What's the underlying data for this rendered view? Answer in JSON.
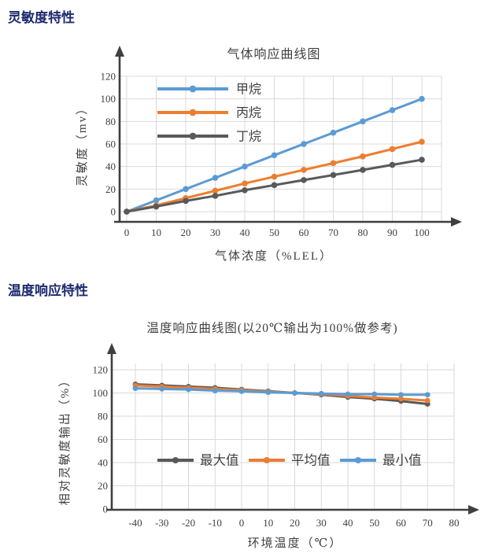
{
  "page": {
    "section1_title": "灵敏度特性",
    "section2_title": "温度响应特性"
  },
  "colors": {
    "heading": "#1c2a6e",
    "series_blue": "#5B9BD5",
    "series_orange": "#ED7D31",
    "series_gray": "#595959",
    "grid": "#D9D9D9",
    "axis": "#3f3f3f",
    "text": "#404040"
  },
  "chart_data": [
    {
      "type": "line",
      "title": "气体响应曲线图",
      "xlabel": "气体浓度（%LEL）",
      "ylabel": "灵敏度（mv）",
      "x": [
        0,
        10,
        20,
        30,
        40,
        50,
        60,
        70,
        80,
        90,
        100
      ],
      "x_tick_labels": [
        "0",
        "10",
        "20",
        "30",
        "40",
        "50",
        "60",
        "70",
        "80",
        "90",
        "100"
      ],
      "x_tick_values": [
        0,
        10,
        20,
        30,
        40,
        50,
        60,
        70,
        80,
        90,
        100
      ],
      "y_ticks": [
        0,
        20,
        40,
        60,
        80,
        100,
        120
      ],
      "xlim": [
        0,
        100
      ],
      "ylim": [
        0,
        120
      ],
      "grid": true,
      "legend_position": "upper-left-vertical",
      "series": [
        {
          "name": "甲烷",
          "color": "#5B9BD5",
          "values": [
            0,
            10,
            20,
            30,
            40,
            50,
            60,
            70,
            80,
            90,
            100
          ]
        },
        {
          "name": "丙烷",
          "color": "#ED7D31",
          "values": [
            0,
            5.5,
            12,
            18.5,
            25,
            31,
            37,
            43,
            49,
            55.5,
            62
          ]
        },
        {
          "name": "丁烷",
          "color": "#595959",
          "values": [
            0,
            4.5,
            9.5,
            14,
            19,
            23.5,
            28,
            32.5,
            37,
            41.5,
            46
          ]
        }
      ]
    },
    {
      "type": "line",
      "title": "温度响应曲线图(以20℃输出为100%做参考)",
      "xlabel": "环境温度（℃）",
      "ylabel": "相对灵敏度输出（%）",
      "x": [
        -40,
        -30,
        -20,
        -10,
        0,
        10,
        20,
        30,
        40,
        50,
        60,
        70
      ],
      "x_tick_labels": [
        "-40",
        "-30",
        "-20",
        "-10",
        "0",
        "10",
        "20",
        "30",
        "40",
        "50",
        "60",
        "70",
        "80"
      ],
      "x_tick_values": [
        -40,
        -30,
        -20,
        -10,
        0,
        10,
        20,
        30,
        40,
        50,
        60,
        70,
        80
      ],
      "y_ticks": [
        0,
        20,
        40,
        60,
        80,
        100,
        120
      ],
      "xlim": [
        -40,
        80
      ],
      "ylim": [
        0,
        120
      ],
      "grid": true,
      "legend_position": "inside-center-horizontal",
      "series": [
        {
          "name": "最大值",
          "color": "#595959",
          "values": [
            107.5,
            106.5,
            105.5,
            104.5,
            103,
            101.5,
            100,
            98.5,
            96.5,
            95,
            93,
            90.5
          ]
        },
        {
          "name": "平均值",
          "color": "#ED7D31",
          "values": [
            106.5,
            105.5,
            104.5,
            103.5,
            102.5,
            101,
            100,
            99,
            97.5,
            96,
            95,
            93.5
          ]
        },
        {
          "name": "最小值",
          "color": "#5B9BD5",
          "values": [
            104,
            103.5,
            103,
            102,
            101.5,
            100.5,
            100,
            99.5,
            99,
            99,
            98.5,
            98.5
          ]
        }
      ]
    }
  ]
}
